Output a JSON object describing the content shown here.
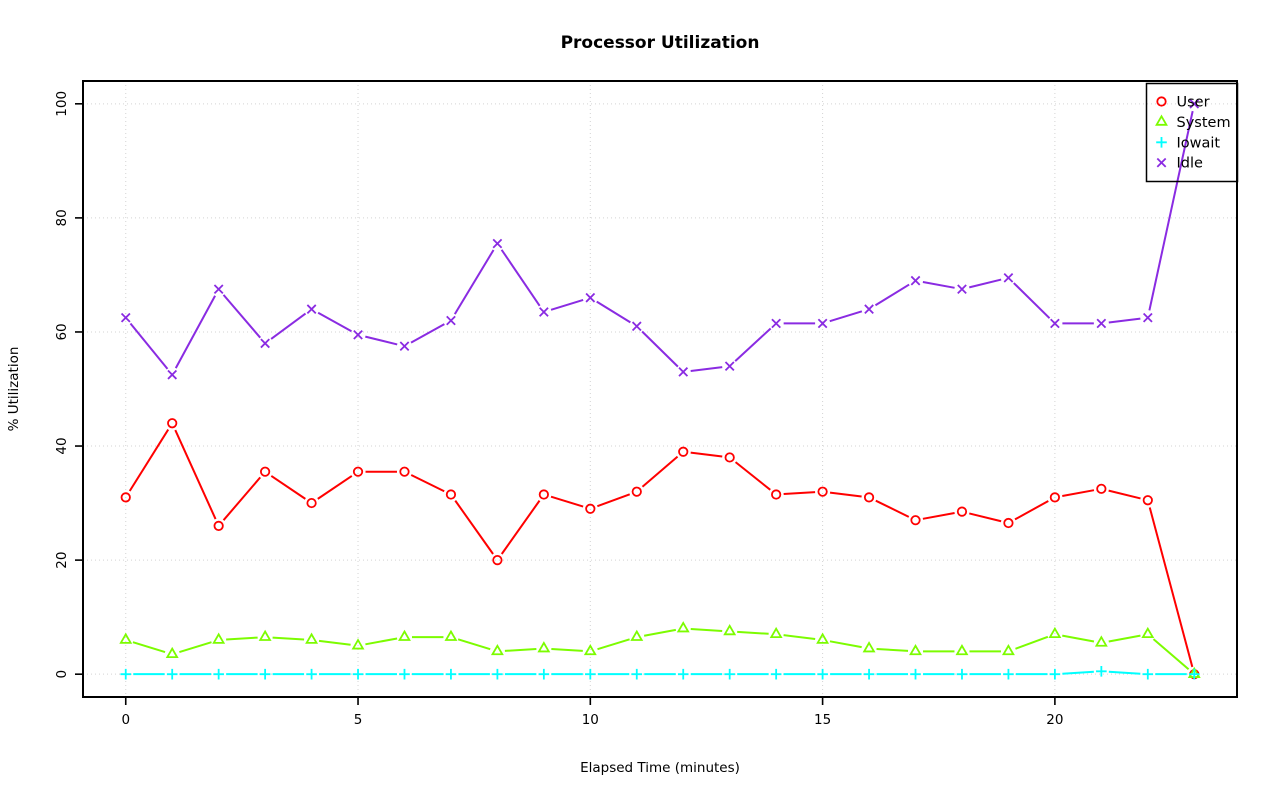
{
  "page": {
    "background_color": "#ffffff"
  },
  "chart_data": {
    "type": "line",
    "title": "Processor Utilization",
    "xlabel": "Elapsed Time (minutes)",
    "ylabel": "% Utilization",
    "xlim": [
      0,
      23
    ],
    "ylim": [
      0,
      100
    ],
    "x_ticks": [
      0,
      5,
      10,
      15,
      20
    ],
    "y_ticks": [
      0,
      20,
      40,
      60,
      80,
      100
    ],
    "grid": true,
    "grid_style": "dotted",
    "grid_color": "#d3d3d3",
    "box_color": "#000000",
    "legend_position": "top-right",
    "x": [
      0,
      1,
      2,
      3,
      4,
      5,
      6,
      7,
      8,
      9,
      10,
      11,
      12,
      13,
      14,
      15,
      16,
      17,
      18,
      19,
      20,
      21,
      22,
      23
    ],
    "series": [
      {
        "name": "User",
        "marker": "circle",
        "marker_icon_name": "open-circle-marker-icon",
        "color": "#ff0000",
        "values": [
          31,
          44,
          26,
          35.5,
          30,
          35.5,
          35.5,
          31.5,
          20,
          31.5,
          29,
          32,
          39,
          38,
          31.5,
          32,
          31,
          27,
          28.5,
          26.5,
          31,
          32.5,
          30.5,
          0
        ]
      },
      {
        "name": "System",
        "marker": "triangle-up",
        "marker_icon_name": "open-triangle-marker-icon",
        "color": "#7cfc00",
        "values": [
          6,
          3.5,
          6,
          6.5,
          6,
          5,
          6.5,
          6.5,
          4,
          4.5,
          4,
          6.5,
          8,
          7.5,
          7,
          6,
          4.5,
          4,
          4,
          4,
          7,
          5.5,
          7,
          0
        ]
      },
      {
        "name": "Iowait",
        "marker": "plus",
        "marker_icon_name": "plus-marker-icon",
        "color": "#00ffff",
        "values": [
          0,
          0,
          0,
          0,
          0,
          0,
          0,
          0,
          0,
          0,
          0,
          0,
          0,
          0,
          0,
          0,
          0,
          0,
          0,
          0,
          0,
          0.5,
          0,
          0
        ]
      },
      {
        "name": "Idle",
        "marker": "x",
        "marker_icon_name": "x-cross-marker-icon",
        "color": "#8a2be2",
        "values": [
          62.5,
          52.5,
          67.5,
          58,
          64,
          59.5,
          57.5,
          62,
          75.5,
          63.5,
          66,
          61,
          53,
          54,
          61.5,
          61.5,
          64,
          69,
          67.5,
          69.5,
          61.5,
          61.5,
          62.5,
          100
        ]
      }
    ]
  }
}
